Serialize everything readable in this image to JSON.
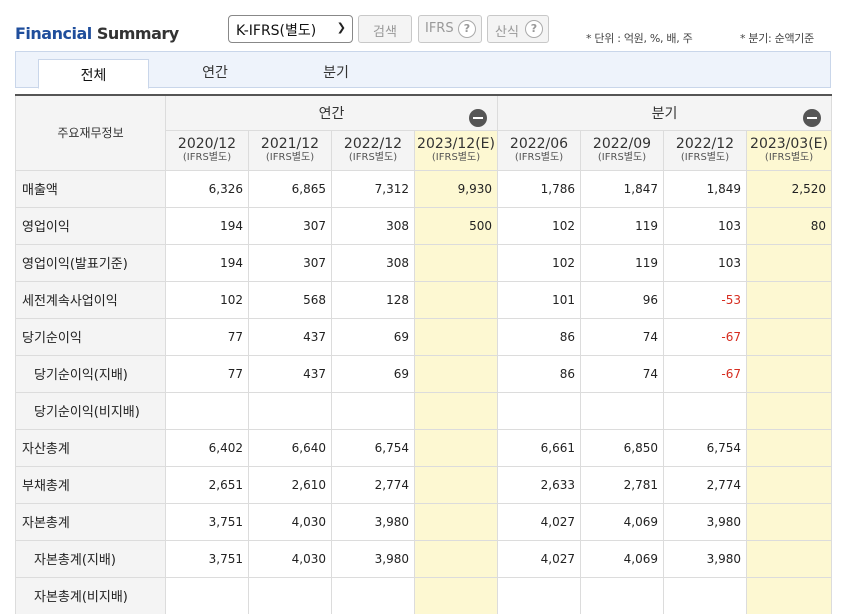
{
  "header": {
    "title_part1": "Financial",
    "title_part2": "Summary",
    "select_value": "K-IFRS(별도)",
    "search_button": "검색",
    "ifrs_button": "IFRS",
    "calc_button": "산식",
    "help_glyph": "?",
    "unit_note": "* 단위 : 억원, %, 배, 주",
    "quarter_note": "* 분기: 순액기준"
  },
  "tabs": [
    "전체",
    "연간",
    "분기"
  ],
  "table": {
    "row_header": "주요재무정보",
    "group_annual": "연간",
    "group_quarter": "분기",
    "periods": [
      {
        "date": "2020/12",
        "basis": "(IFRS별도)"
      },
      {
        "date": "2021/12",
        "basis": "(IFRS별도)"
      },
      {
        "date": "2022/12",
        "basis": "(IFRS별도)"
      },
      {
        "date": "2023/12(E)",
        "basis": "(IFRS별도)"
      },
      {
        "date": "2022/06",
        "basis": "(IFRS별도)"
      },
      {
        "date": "2022/09",
        "basis": "(IFRS별도)"
      },
      {
        "date": "2022/12",
        "basis": "(IFRS별도)"
      },
      {
        "date": "2023/03(E)",
        "basis": "(IFRS별도)"
      }
    ],
    "rows": [
      {
        "label": "매출액",
        "values": [
          "6,326",
          "6,865",
          "7,312",
          "9,930",
          "1,786",
          "1,847",
          "1,849",
          "2,520"
        ]
      },
      {
        "label": "영업이익",
        "values": [
          "194",
          "307",
          "308",
          "500",
          "102",
          "119",
          "103",
          "80"
        ]
      },
      {
        "label": "영업이익(발표기준)",
        "values": [
          "194",
          "307",
          "308",
          "",
          "102",
          "119",
          "103",
          ""
        ]
      },
      {
        "label": "세전계속사업이익",
        "values": [
          "102",
          "568",
          "128",
          "",
          "101",
          "96",
          "-53",
          ""
        ]
      },
      {
        "label": "당기순이익",
        "values": [
          "77",
          "437",
          "69",
          "",
          "86",
          "74",
          "-67",
          ""
        ]
      },
      {
        "label": "당기순이익(지배)",
        "values": [
          "77",
          "437",
          "69",
          "",
          "86",
          "74",
          "-67",
          ""
        ]
      },
      {
        "label": "당기순이익(비지배)",
        "values": [
          "",
          "",
          "",
          "",
          "",
          "",
          "",
          ""
        ]
      },
      {
        "label": "자산총계",
        "values": [
          "6,402",
          "6,640",
          "6,754",
          "",
          "6,661",
          "6,850",
          "6,754",
          ""
        ]
      },
      {
        "label": "부채총계",
        "values": [
          "2,651",
          "2,610",
          "2,774",
          "",
          "2,633",
          "2,781",
          "2,774",
          ""
        ]
      },
      {
        "label": "자본총계",
        "values": [
          "3,751",
          "4,030",
          "3,980",
          "",
          "4,027",
          "4,069",
          "3,980",
          ""
        ]
      },
      {
        "label": "자본총계(지배)",
        "values": [
          "3,751",
          "4,030",
          "3,980",
          "",
          "4,027",
          "4,069",
          "3,980",
          ""
        ]
      },
      {
        "label": "자본총계(비지배)",
        "values": [
          "",
          "",
          "",
          "",
          "",
          "",
          "",
          ""
        ]
      }
    ]
  },
  "colors": {
    "title_accent": "#1f4e9c",
    "estimate_bg": "#fdf8d2",
    "negative": "#d62d20"
  }
}
